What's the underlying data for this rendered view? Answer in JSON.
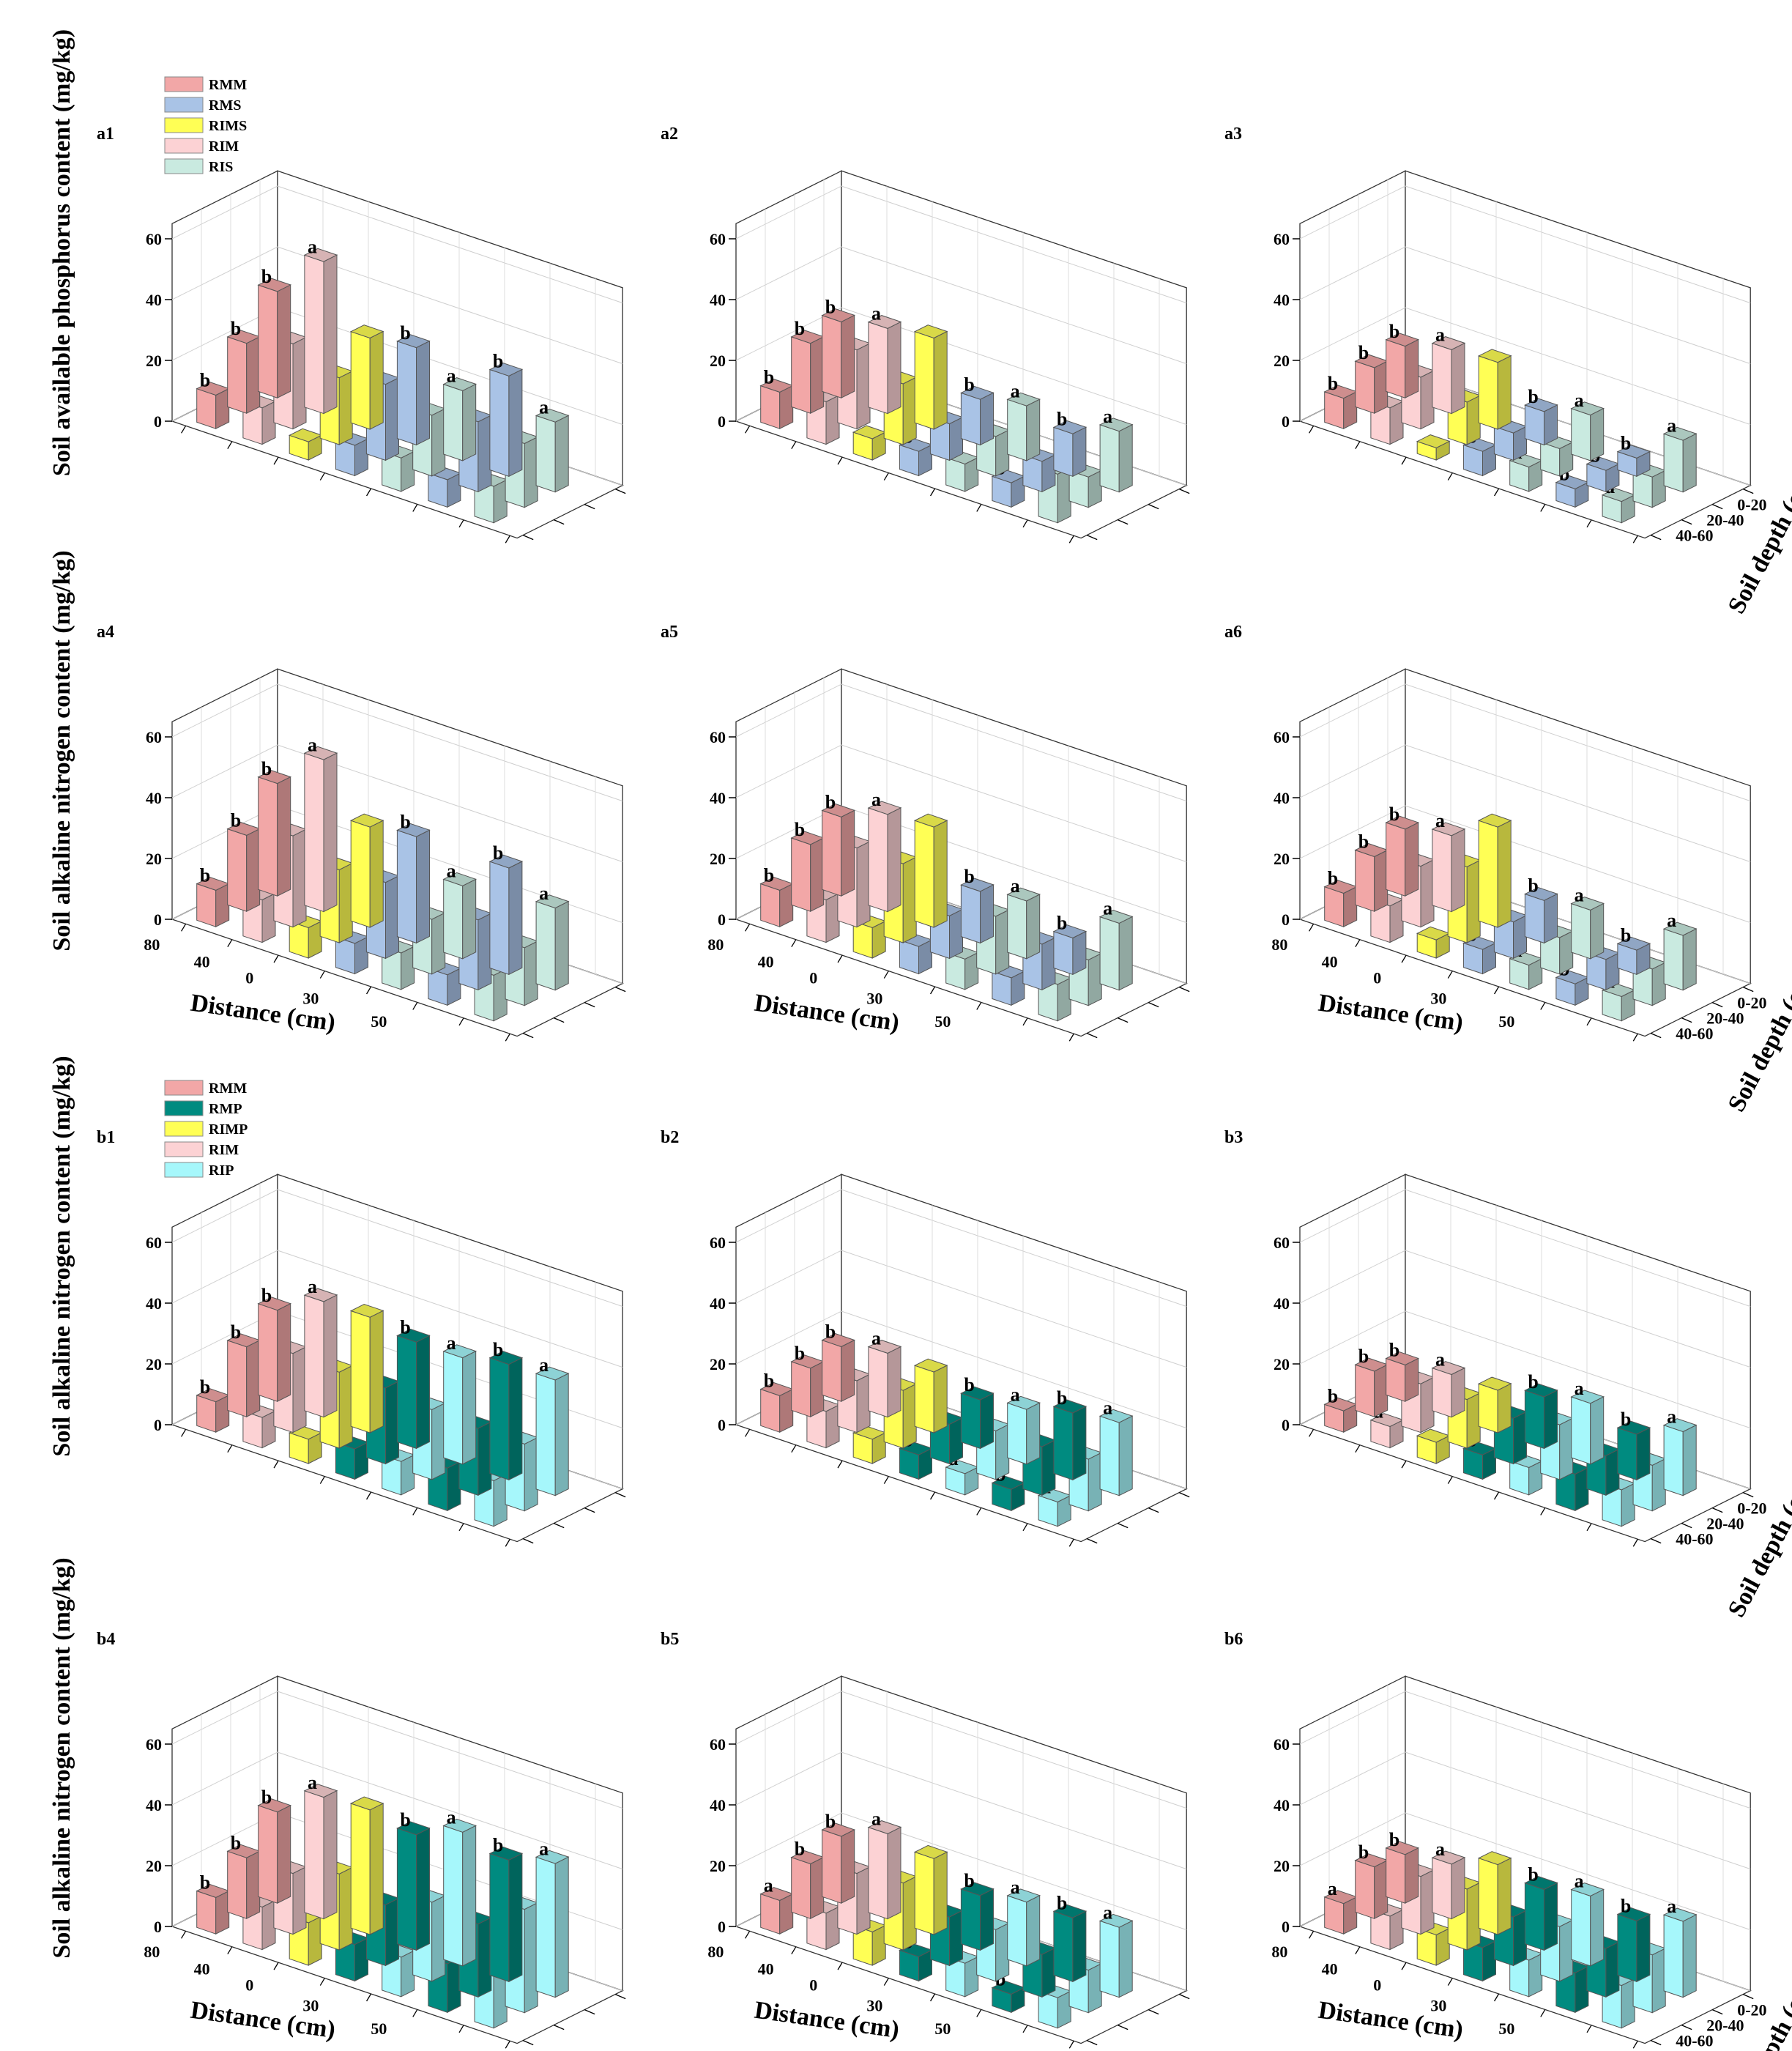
{
  "legend_a": [
    {
      "name": "RMM",
      "color": "#f2a7a7"
    },
    {
      "name": "RMS",
      "color": "#a9c3e6"
    },
    {
      "name": "RIMS",
      "color": "#ffff55"
    },
    {
      "name": "RIM",
      "color": "#fcd2d4"
    },
    {
      "name": "RIS",
      "color": "#c9eae0"
    }
  ],
  "legend_b": [
    {
      "name": "RMM",
      "color": "#f2a7a7"
    },
    {
      "name": "RMP",
      "color": "#008b80"
    },
    {
      "name": "RIMP",
      "color": "#ffff55"
    },
    {
      "name": "RIM",
      "color": "#fcd2d4"
    },
    {
      "name": "RIP",
      "color": "#a6f7fb"
    }
  ],
  "axis": {
    "distance_label": "Distance (cm)",
    "depth_label": "Soil depth (cm)",
    "distance_ticks": [
      "80",
      "40",
      "0",
      "30",
      "50"
    ],
    "depth_ticks": [
      "0-20",
      "20-40",
      "40-60"
    ],
    "z_ticks": [
      "0",
      "20",
      "40",
      "60"
    ]
  },
  "row_labels": [
    "Soil available phosphorus content (mg/kg)",
    "Soil alkaline nitrogen content (mg/kg)",
    "Soil alkaline nitrogen content (mg/kg)",
    "Soil alkaline nitrogen content (mg/kg)"
  ],
  "chart_data": [
    {
      "id": "a1",
      "type": "bar3d",
      "zlim": [
        0,
        60
      ],
      "legend": "a",
      "colors": [
        "#f2a7a7",
        "#fcd2d4",
        "#ffff55",
        "#a9c3e6",
        "#c9eae0",
        "#a9c3e6",
        "#c9eae0"
      ],
      "depth": [
        {
          "v": [
            35,
            50,
            30,
            32,
            23,
            33,
            23
          ],
          "s": [
            "b",
            "a",
            "",
            "b",
            "a",
            "b",
            "a"
          ]
        },
        {
          "v": [
            23,
            28,
            22,
            25,
            20,
            23,
            21
          ],
          "s": [
            "b",
            "a",
            "",
            "b",
            "a",
            "b",
            "a"
          ]
        },
        {
          "v": [
            11,
            12,
            6,
            10,
            11,
            9,
            12
          ],
          "s": [
            "b",
            "a",
            "",
            "b",
            "a",
            "b",
            "a"
          ]
        }
      ]
    },
    {
      "id": "a2",
      "type": "bar3d",
      "zlim": [
        0,
        60
      ],
      "legend": "",
      "colors": [
        "#f2a7a7",
        "#fcd2d4",
        "#ffff55",
        "#a9c3e6",
        "#c9eae0",
        "#a9c3e6",
        "#c9eae0"
      ],
      "depth": [
        {
          "v": [
            25,
            28,
            30,
            15,
            18,
            14,
            20
          ],
          "s": [
            "b",
            "a",
            "",
            "b",
            "a",
            "b",
            "a"
          ]
        },
        {
          "v": [
            23,
            26,
            20,
            12,
            13,
            10,
            10
          ],
          "s": [
            "b",
            "a",
            "",
            "b",
            "a",
            "b",
            "a"
          ]
        },
        {
          "v": [
            12,
            14,
            7,
            8,
            9,
            8,
            16
          ],
          "s": [
            "b",
            "a",
            "",
            "b",
            "a",
            "b",
            "a"
          ]
        }
      ]
    },
    {
      "id": "a3",
      "type": "bar3d",
      "zlim": [
        0,
        60
      ],
      "legend": "",
      "colors": [
        "#f2a7a7",
        "#fcd2d4",
        "#ffff55",
        "#a9c3e6",
        "#c9eae0",
        "#a9c3e6",
        "#c9eae0"
      ],
      "depth": [
        {
          "v": [
            17,
            21,
            22,
            11,
            15,
            6,
            17
          ],
          "s": [
            "b",
            "a",
            "",
            "b",
            "a",
            "b",
            "a"
          ]
        },
        {
          "v": [
            15,
            17,
            14,
            9,
            9,
            7,
            10
          ],
          "s": [
            "b",
            "a",
            "",
            "b",
            "a",
            "b",
            "a"
          ]
        },
        {
          "v": [
            10,
            12,
            4,
            8,
            8,
            6,
            7
          ],
          "s": [
            "b",
            "a",
            "",
            "b",
            "a",
            "b",
            "a"
          ]
        }
      ]
    },
    {
      "id": "a4",
      "type": "bar3d",
      "zlim": [
        0,
        60
      ],
      "legend": "",
      "colors": [
        "#f2a7a7",
        "#fcd2d4",
        "#ffff55",
        "#a9c3e6",
        "#c9eae0",
        "#a9c3e6",
        "#c9eae0"
      ],
      "depth": [
        {
          "v": [
            37,
            50,
            33,
            35,
            24,
            35,
            27
          ],
          "s": [
            "b",
            "a",
            "",
            "b",
            "a",
            "b",
            "a"
          ]
        },
        {
          "v": [
            25,
            30,
            24,
            25,
            18,
            23,
            19
          ],
          "s": [
            "b",
            "a",
            "",
            "b",
            "a",
            "b",
            "a"
          ]
        },
        {
          "v": [
            12,
            14,
            10,
            10,
            12,
            10,
            15
          ],
          "s": [
            "b",
            "a",
            "",
            "b",
            "a",
            "b",
            "a"
          ]
        }
      ]
    },
    {
      "id": "a5",
      "type": "bar3d",
      "zlim": [
        0,
        60
      ],
      "legend": "",
      "colors": [
        "#f2a7a7",
        "#fcd2d4",
        "#ffff55",
        "#a9c3e6",
        "#c9eae0",
        "#a9c3e6",
        "#c9eae0"
      ],
      "depth": [
        {
          "v": [
            26,
            32,
            33,
            17,
            19,
            12,
            22
          ],
          "s": [
            "b",
            "a",
            "",
            "b",
            "a",
            "b",
            "a"
          ]
        },
        {
          "v": [
            22,
            26,
            26,
            14,
            19,
            15,
            15
          ],
          "s": [
            "b",
            "a",
            "",
            "b",
            "a",
            "b",
            "a"
          ]
        },
        {
          "v": [
            12,
            14,
            10,
            9,
            10,
            9,
            12
          ],
          "s": [
            "b",
            "a",
            "",
            "b",
            "a",
            "b",
            "a"
          ]
        }
      ]
    },
    {
      "id": "a6",
      "type": "bar3d",
      "zlim": [
        0,
        60
      ],
      "legend": "",
      "colors": [
        "#f2a7a7",
        "#fcd2d4",
        "#ffff55",
        "#a9c3e6",
        "#c9eae0",
        "#a9c3e6",
        "#c9eae0"
      ],
      "depth": [
        {
          "v": [
            22,
            25,
            33,
            14,
            16,
            8,
            18
          ],
          "s": [
            "b",
            "a",
            "",
            "b",
            "a",
            "b",
            "a"
          ]
        },
        {
          "v": [
            18,
            20,
            25,
            12,
            12,
            10,
            12
          ],
          "s": [
            "b",
            "a",
            "",
            "b",
            "a",
            "b",
            "a"
          ]
        },
        {
          "v": [
            11,
            12,
            6,
            8,
            8,
            7,
            8
          ],
          "s": [
            "b",
            "a",
            "",
            "b",
            "a",
            "b",
            "a"
          ]
        }
      ]
    },
    {
      "id": "b1",
      "type": "bar3d",
      "zlim": [
        0,
        60
      ],
      "legend": "b",
      "colors": [
        "#f2a7a7",
        "#fcd2d4",
        "#ffff55",
        "#008b80",
        "#a6f7fb",
        "#008b80",
        "#a6f7fb"
      ],
      "depth": [
        {
          "v": [
            30,
            38,
            38,
            35,
            35,
            38,
            38
          ],
          "s": [
            "b",
            "a",
            "",
            "b",
            "a",
            "b",
            "a"
          ]
        },
        {
          "v": [
            23,
            26,
            25,
            25,
            23,
            22,
            22
          ],
          "s": [
            "b",
            "a",
            "",
            "b",
            "a",
            "b",
            "a"
          ]
        },
        {
          "v": [
            10,
            10,
            8,
            10,
            11,
            14,
            15
          ],
          "s": [
            "b",
            "a",
            "",
            "b",
            "a",
            "b",
            "a"
          ]
        }
      ]
    },
    {
      "id": "b2",
      "type": "bar3d",
      "zlim": [
        0,
        60
      ],
      "legend": "",
      "colors": [
        "#f2a7a7",
        "#fcd2d4",
        "#ffff55",
        "#008b80",
        "#a6f7fb",
        "#008b80",
        "#a6f7fb"
      ],
      "depth": [
        {
          "v": [
            18,
            21,
            20,
            16,
            18,
            22,
            24
          ],
          "s": [
            "b",
            "a",
            "",
            "b",
            "a",
            "b",
            "a"
          ]
        },
        {
          "v": [
            16,
            17,
            19,
            13,
            16,
            16,
            17
          ],
          "s": [
            "b",
            "a",
            "",
            "b",
            "a",
            "b",
            "a"
          ]
        },
        {
          "v": [
            12,
            12,
            8,
            8,
            7,
            7,
            8
          ],
          "s": [
            "b",
            "a",
            "",
            "b",
            "a",
            "b",
            "a"
          ]
        }
      ]
    },
    {
      "id": "b3",
      "type": "bar3d",
      "zlim": [
        0,
        60
      ],
      "legend": "",
      "colors": [
        "#f2a7a7",
        "#fcd2d4",
        "#ffff55",
        "#008b80",
        "#a6f7fb",
        "#008b80",
        "#a6f7fb"
      ],
      "depth": [
        {
          "v": [
            12,
            14,
            14,
            17,
            20,
            15,
            21
          ],
          "s": [
            "b",
            "a",
            "",
            "b",
            "a",
            "b",
            "a"
          ]
        },
        {
          "v": [
            15,
            16,
            16,
            15,
            18,
            13,
            15
          ],
          "s": [
            "b",
            "a",
            "",
            "b",
            "a",
            "b",
            "a"
          ]
        },
        {
          "v": [
            7,
            7,
            7,
            8,
            9,
            12,
            12
          ],
          "s": [
            "b",
            "a",
            "",
            "b",
            "a",
            "b",
            "a"
          ]
        }
      ]
    },
    {
      "id": "b4",
      "type": "bar3d",
      "zlim": [
        0,
        60
      ],
      "legend": "",
      "colors": [
        "#f2a7a7",
        "#fcd2d4",
        "#ffff55",
        "#008b80",
        "#a6f7fb",
        "#008b80",
        "#a6f7fb"
      ],
      "depth": [
        {
          "v": [
            30,
            40,
            41,
            38,
            44,
            40,
            44
          ],
          "s": [
            "b",
            "a",
            "",
            "b",
            "a",
            "b",
            "a"
          ]
        },
        {
          "v": [
            20,
            20,
            25,
            20,
            26,
            24,
            34
          ],
          "s": [
            "b",
            "a",
            "",
            "b",
            "a",
            "b",
            "a"
          ]
        },
        {
          "v": [
            12,
            14,
            14,
            12,
            13,
            16,
            17
          ],
          "s": [
            "b",
            "a",
            "",
            "b",
            "a",
            "b",
            "a"
          ]
        }
      ]
    },
    {
      "id": "b5",
      "type": "bar3d",
      "zlim": [
        0,
        60
      ],
      "legend": "",
      "colors": [
        "#f2a7a7",
        "#fcd2d4",
        "#ffff55",
        "#008b80",
        "#a6f7fb",
        "#008b80",
        "#a6f7fb"
      ],
      "depth": [
        {
          "v": [
            22,
            28,
            25,
            18,
            21,
            21,
            23
          ],
          "s": [
            "b",
            "a",
            "",
            "b",
            "a",
            "b",
            "a"
          ]
        },
        {
          "v": [
            18,
            20,
            22,
            16,
            17,
            14,
            14
          ],
          "s": [
            "b",
            "a",
            "",
            "b",
            "a",
            "b",
            "a"
          ]
        },
        {
          "v": [
            11,
            12,
            11,
            8,
            11,
            6,
            10
          ],
          "s": [
            "a",
            "a",
            "",
            "b",
            "a",
            "b",
            "a"
          ]
        }
      ]
    },
    {
      "id": "b6",
      "type": "bar3d",
      "zlim": [
        0,
        60
      ],
      "legend": "",
      "colors": [
        "#f2a7a7",
        "#fcd2d4",
        "#ffff55",
        "#008b80",
        "#a6f7fb",
        "#008b80",
        "#a6f7fb"
      ],
      "depth": [
        {
          "v": [
            16,
            18,
            23,
            20,
            23,
            20,
            25
          ],
          "s": [
            "b",
            "a",
            "",
            "b",
            "a",
            "b",
            "a"
          ]
        },
        {
          "v": [
            17,
            19,
            20,
            16,
            18,
            16,
            19
          ],
          "s": [
            "b",
            "a",
            "",
            "b",
            "a",
            "b",
            "a"
          ]
        },
        {
          "v": [
            10,
            11,
            10,
            11,
            12,
            13,
            14
          ],
          "s": [
            "a",
            "a",
            "",
            "b",
            "a",
            "b",
            "a"
          ]
        }
      ]
    }
  ]
}
